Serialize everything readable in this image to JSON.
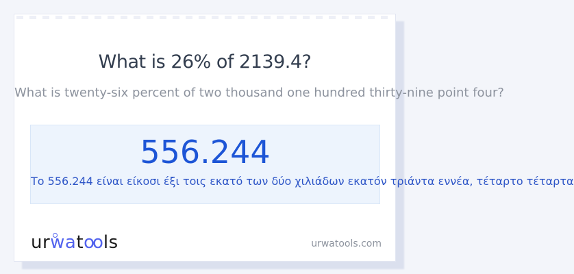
{
  "card": {
    "title": "What is 26% of 2139.4?",
    "question_in_words": "What is twenty-six percent of two thousand one hundred thirty-nine point four?",
    "answer": {
      "value": "556.244",
      "translation_greek": "Το 556.244 είναι είκοσι έξι τοις εκατό των δύο χιλιάδων εκατόν τριάντα εννέα, τέταρτο τέταρτα"
    }
  },
  "footer": {
    "logo": {
      "ur": "ur",
      "wa": "wa",
      "t": "t",
      "oo": "oo",
      "ls": "ls"
    },
    "domain": "urwatools.com"
  },
  "colors": {
    "page_background": "#f3f5fa",
    "card_background": "#ffffff",
    "card_shadow": "#dbe0ee",
    "title_text": "#333e4f",
    "muted_text": "#8d939e",
    "answer_panel_background": "#edf4fd",
    "answer_value_blue": "#1d55d6",
    "answer_words_blue": "#2d55c7",
    "logo_black": "#1b1b1b",
    "logo_blue": "#5263ee"
  }
}
